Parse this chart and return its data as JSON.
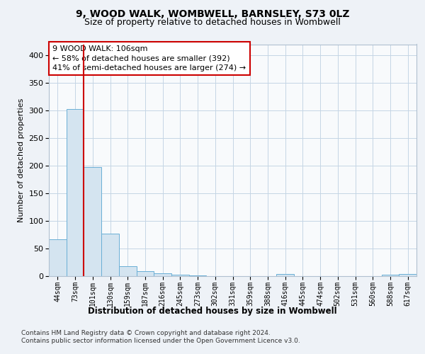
{
  "title1": "9, WOOD WALK, WOMBWELL, BARNSLEY, S73 0LZ",
  "title2": "Size of property relative to detached houses in Wombwell",
  "xlabel": "Distribution of detached houses by size in Wombwell",
  "ylabel": "Number of detached properties",
  "categories": [
    "44sqm",
    "73sqm",
    "101sqm",
    "130sqm",
    "159sqm",
    "187sqm",
    "216sqm",
    "245sqm",
    "273sqm",
    "302sqm",
    "331sqm",
    "359sqm",
    "388sqm",
    "416sqm",
    "445sqm",
    "474sqm",
    "502sqm",
    "531sqm",
    "560sqm",
    "588sqm",
    "617sqm"
  ],
  "values": [
    67,
    303,
    197,
    77,
    18,
    9,
    5,
    3,
    1,
    0,
    0,
    0,
    0,
    4,
    0,
    0,
    0,
    0,
    0,
    2,
    4
  ],
  "bar_color": "#d4e4f0",
  "bar_edge_color": "#6aafd6",
  "vline_x_index": 2,
  "vline_color": "#cc0000",
  "annotation_text": "9 WOOD WALK: 106sqm\n← 58% of detached houses are smaller (392)\n41% of semi-detached houses are larger (274) →",
  "annotation_box_color": "white",
  "annotation_box_edge_color": "#cc0000",
  "ylim": [
    0,
    420
  ],
  "yticks": [
    0,
    50,
    100,
    150,
    200,
    250,
    300,
    350,
    400
  ],
  "footer1": "Contains HM Land Registry data © Crown copyright and database right 2024.",
  "footer2": "Contains public sector information licensed under the Open Government Licence v3.0.",
  "bg_color": "#eef2f7",
  "plot_bg_color": "#f8fafc",
  "grid_color": "#c5d5e5"
}
